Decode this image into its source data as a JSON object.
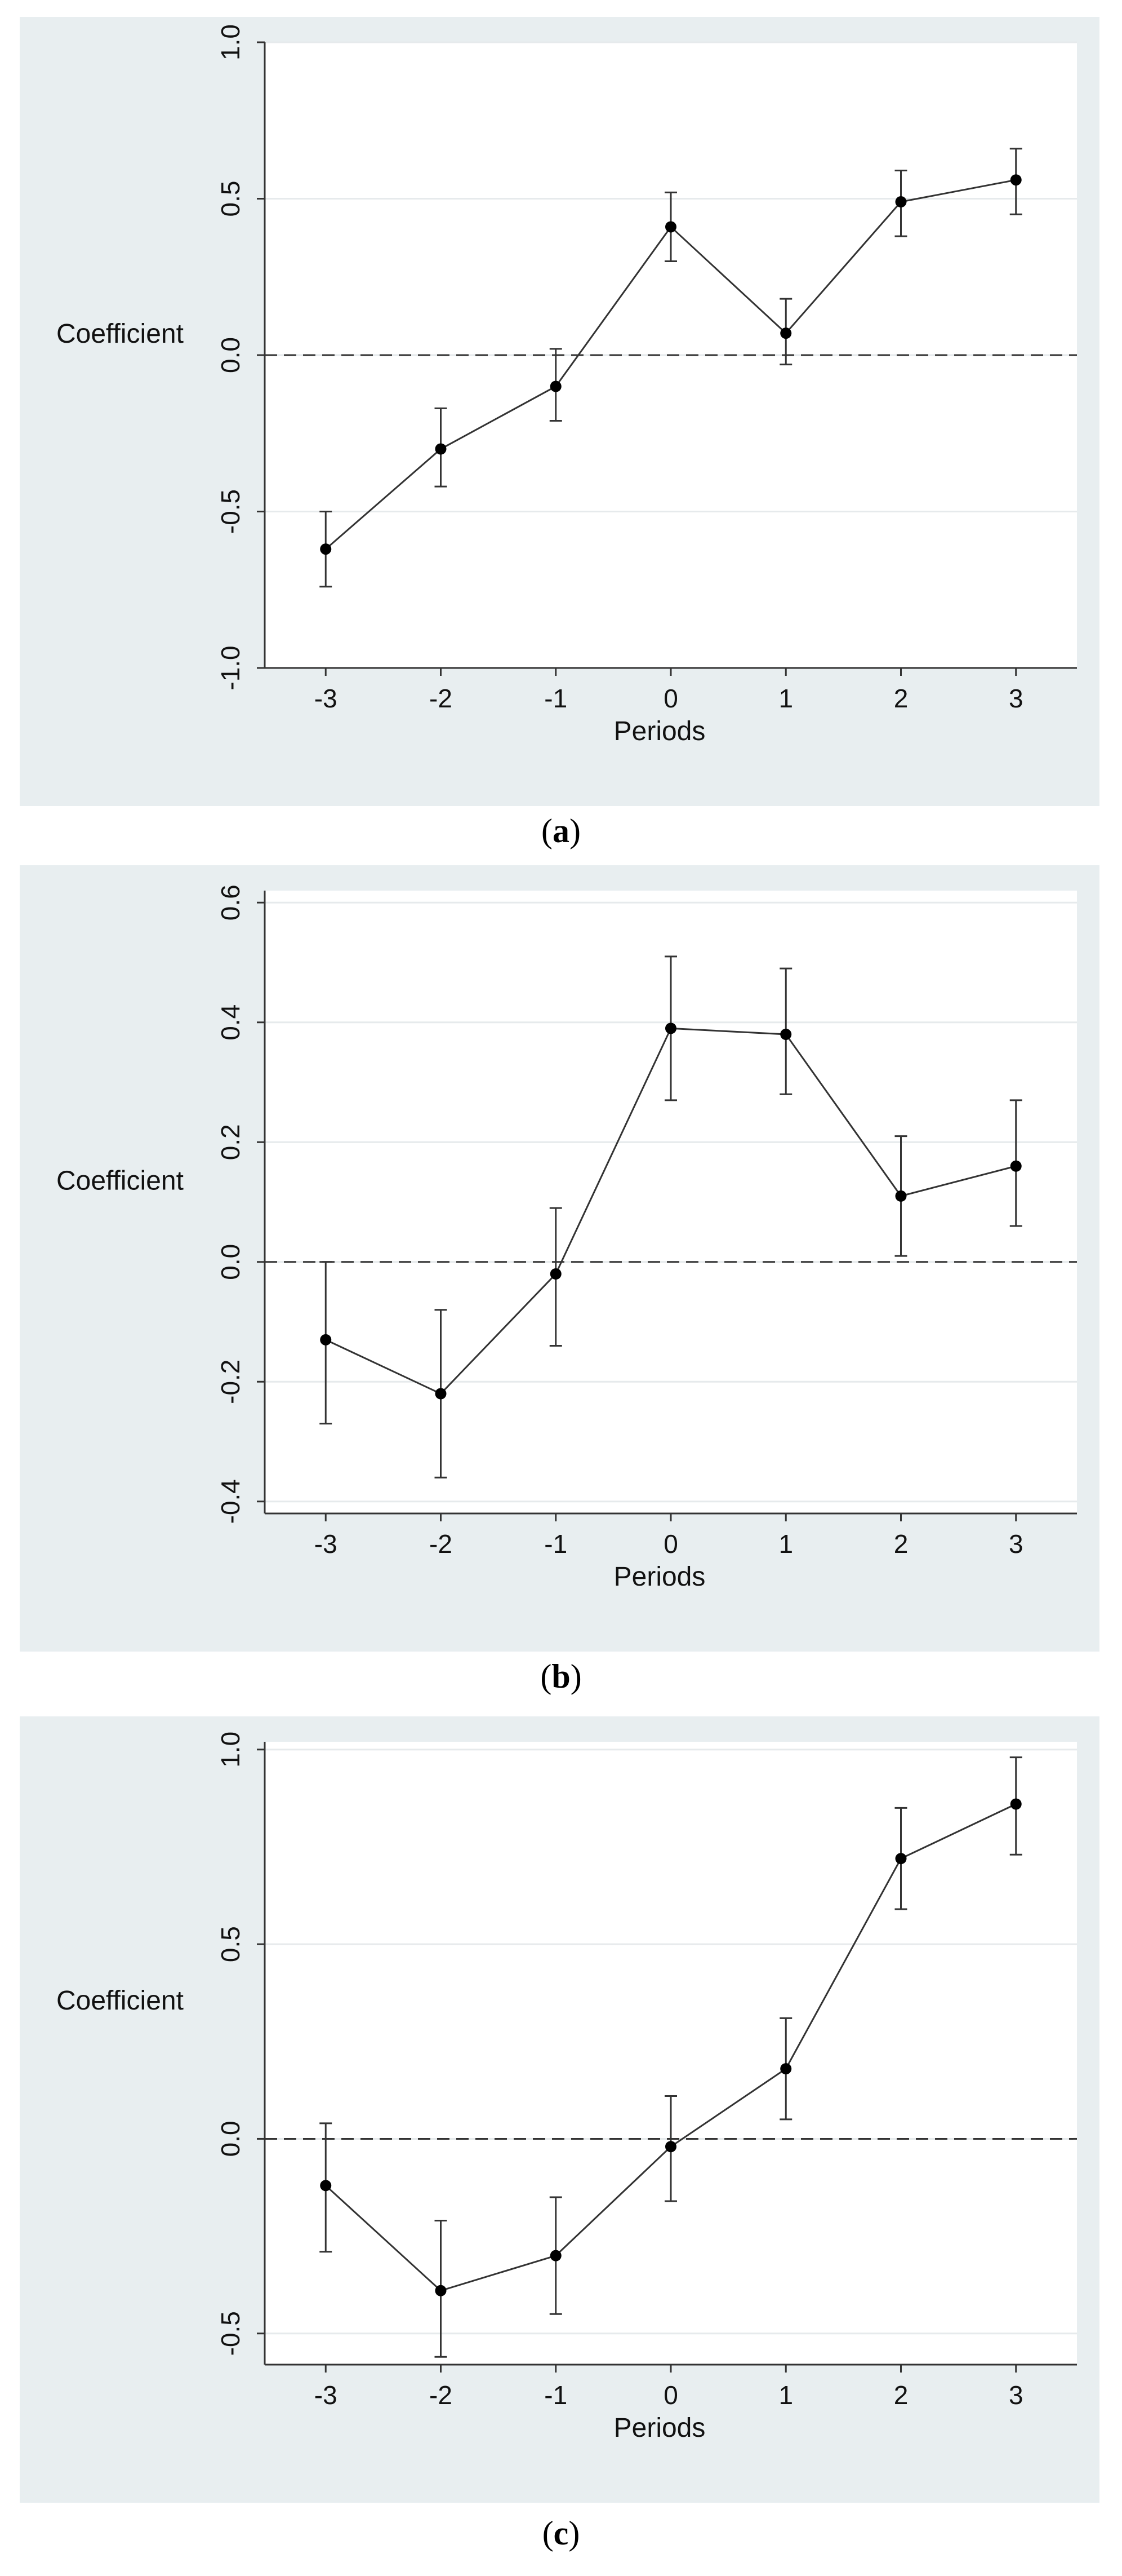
{
  "chart_data": [
    {
      "type": "line",
      "panel_label": "a",
      "ylabel": "Coefficient",
      "xlabel": "Periods",
      "x": [
        -3,
        -2,
        -1,
        0,
        1,
        2,
        3
      ],
      "xtick_labels": [
        "-3",
        "-2",
        "-1",
        "0",
        "1",
        "2",
        "3"
      ],
      "ylim": [
        -1.0,
        1.0
      ],
      "yticks": [
        -1.0,
        -0.5,
        0.0,
        0.5,
        1.0
      ],
      "ytick_labels": [
        "-1.0",
        "-0.5",
        "0.0",
        "0.5",
        "1.0"
      ],
      "series": [
        {
          "name": "Coefficient",
          "values": [
            -0.62,
            -0.3,
            -0.1,
            0.41,
            0.07,
            0.49,
            0.56
          ],
          "ci_lower": [
            -0.74,
            -0.42,
            -0.21,
            0.3,
            -0.03,
            0.38,
            0.45
          ],
          "ci_upper": [
            -0.5,
            -0.17,
            0.02,
            0.52,
            0.18,
            0.59,
            0.66
          ]
        }
      ],
      "reference_line": 0
    },
    {
      "type": "line",
      "panel_label": "b",
      "ylabel": "Coefficient",
      "xlabel": "Periods",
      "x": [
        -3,
        -2,
        -1,
        0,
        1,
        2,
        3
      ],
      "xtick_labels": [
        "-3",
        "-2",
        "-1",
        "0",
        "1",
        "2",
        "3"
      ],
      "ylim": [
        -0.42,
        0.62
      ],
      "yticks": [
        -0.4,
        -0.2,
        0.0,
        0.2,
        0.4,
        0.6
      ],
      "ytick_labels": [
        "-0.4",
        "-0.2",
        "0.0",
        "0.2",
        "0.4",
        "0.6"
      ],
      "series": [
        {
          "name": "Coefficient",
          "values": [
            -0.13,
            -0.22,
            -0.02,
            0.39,
            0.38,
            0.11,
            0.16
          ],
          "ci_lower": [
            -0.27,
            -0.36,
            -0.14,
            0.27,
            0.28,
            0.01,
            0.06
          ],
          "ci_upper": [
            0.0,
            -0.08,
            0.09,
            0.51,
            0.49,
            0.21,
            0.27
          ]
        }
      ],
      "reference_line": 0
    },
    {
      "type": "line",
      "panel_label": "c",
      "ylabel": "Coefficient",
      "xlabel": "Periods",
      "x": [
        -3,
        -2,
        -1,
        0,
        1,
        2,
        3
      ],
      "xtick_labels": [
        "-3",
        "-2",
        "-1",
        "0",
        "1",
        "2",
        "3"
      ],
      "ylim": [
        -0.58,
        1.02
      ],
      "yticks": [
        -0.5,
        0.0,
        0.5,
        1.0
      ],
      "ytick_labels": [
        "-0.5",
        "0.0",
        "0.5",
        "1.0"
      ],
      "series": [
        {
          "name": "Coefficient",
          "values": [
            -0.12,
            -0.39,
            -0.3,
            -0.02,
            0.18,
            0.72,
            0.86
          ],
          "ci_lower": [
            -0.29,
            -0.56,
            -0.45,
            -0.16,
            0.05,
            0.59,
            0.73
          ],
          "ci_upper": [
            0.04,
            -0.21,
            -0.15,
            0.11,
            0.31,
            0.85,
            0.98
          ]
        }
      ],
      "reference_line": 0
    }
  ],
  "captions": [
    "a",
    "b",
    "c"
  ]
}
